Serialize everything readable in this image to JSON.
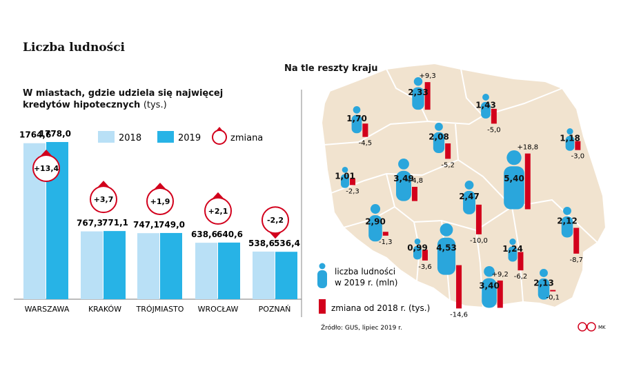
{
  "title": "Liczba ludności",
  "left_chart": {
    "subtitle": "W miastach, gdzie udziela się najwięcej kredytów hipotecznych",
    "unit": "(tys.)",
    "legend": {
      "y2018": "2018",
      "y2019": "2019",
      "change": "zmiana"
    }
  },
  "right_chart": {
    "subtitle": "Na tle reszty kraju",
    "legend_population": "liczba ludności w 2019 r. (mln)",
    "legend_change": "zmiana od 2018 r. (tys.)"
  },
  "source": "Źródło: GUS, lipiec 2019 r.",
  "credit": "MK",
  "colors": {
    "y2018": "#b9e0f6",
    "y2019": "#27b3e6",
    "change": "#d2001c",
    "person": "#2aa6dc",
    "map_fill": "#f1e3cf",
    "map_border": "#ffffff"
  },
  "chart_data": [
    {
      "type": "bar",
      "title": "W miastach, gdzie udziela się najwięcej kredytów hipotecznych",
      "ylabel": "(tys.)",
      "categories": [
        "WARSZAWA",
        "KRAKÓW",
        "TRÓJMIASTO",
        "WROCŁAW",
        "POZNAŃ"
      ],
      "series": [
        {
          "name": "2018",
          "values": [
            1764.6,
            767.3,
            747.1,
            638.6,
            538.6
          ],
          "labels": [
            "1764,6",
            "767,3",
            "747,1",
            "638,6",
            "538,6"
          ]
        },
        {
          "name": "2019",
          "values": [
            1778.0,
            771.1,
            749.0,
            640.6,
            536.4
          ],
          "labels": [
            "1778,0",
            "771,1",
            "749,0",
            "640,6",
            "536,4"
          ]
        },
        {
          "name": "zmiana",
          "values": [
            13.4,
            3.7,
            1.9,
            2.1,
            -2.2
          ],
          "labels": [
            "+13,4",
            "+3,7",
            "+1,9",
            "+2,1",
            "-2,2"
          ]
        }
      ],
      "ylim": [
        0,
        1800
      ],
      "legend_position": "top"
    },
    {
      "type": "bar",
      "title": "Na tle reszty kraju",
      "series": [
        {
          "name": "liczba ludności w 2019 r. (mln)",
          "values": [
            2.33,
            1.7,
            1.43,
            2.08,
            1.18,
            1.01,
            3.49,
            5.4,
            2.47,
            2.9,
            2.12,
            0.99,
            4.53,
            1.24,
            3.4,
            2.13
          ],
          "labels": [
            "2,33",
            "1,70",
            "1,43",
            "2,08",
            "1,18",
            "1,01",
            "3,49",
            "5,40",
            "2,47",
            "2,90",
            "2,12",
            "0,99",
            "4,53",
            "1,24",
            "3,40",
            "2,13"
          ]
        },
        {
          "name": "zmiana od 2018 r. (tys.)",
          "values": [
            9.3,
            -4.5,
            -5.0,
            -5.2,
            -3.0,
            -2.3,
            4.8,
            18.8,
            -10.0,
            -1.3,
            -8.7,
            -3.6,
            -14.6,
            -6.2,
            9.2,
            -0.1
          ],
          "labels": [
            "+9,3",
            "-4,5",
            "-5,0",
            "-5,2",
            "-3,0",
            "-2,3",
            "+4,8",
            "+18,8",
            "-10,0",
            "-1,3",
            "-8,7",
            "-3,6",
            "-14,6",
            "-6,2",
            "+9,2",
            "-0,1"
          ]
        }
      ]
    }
  ]
}
